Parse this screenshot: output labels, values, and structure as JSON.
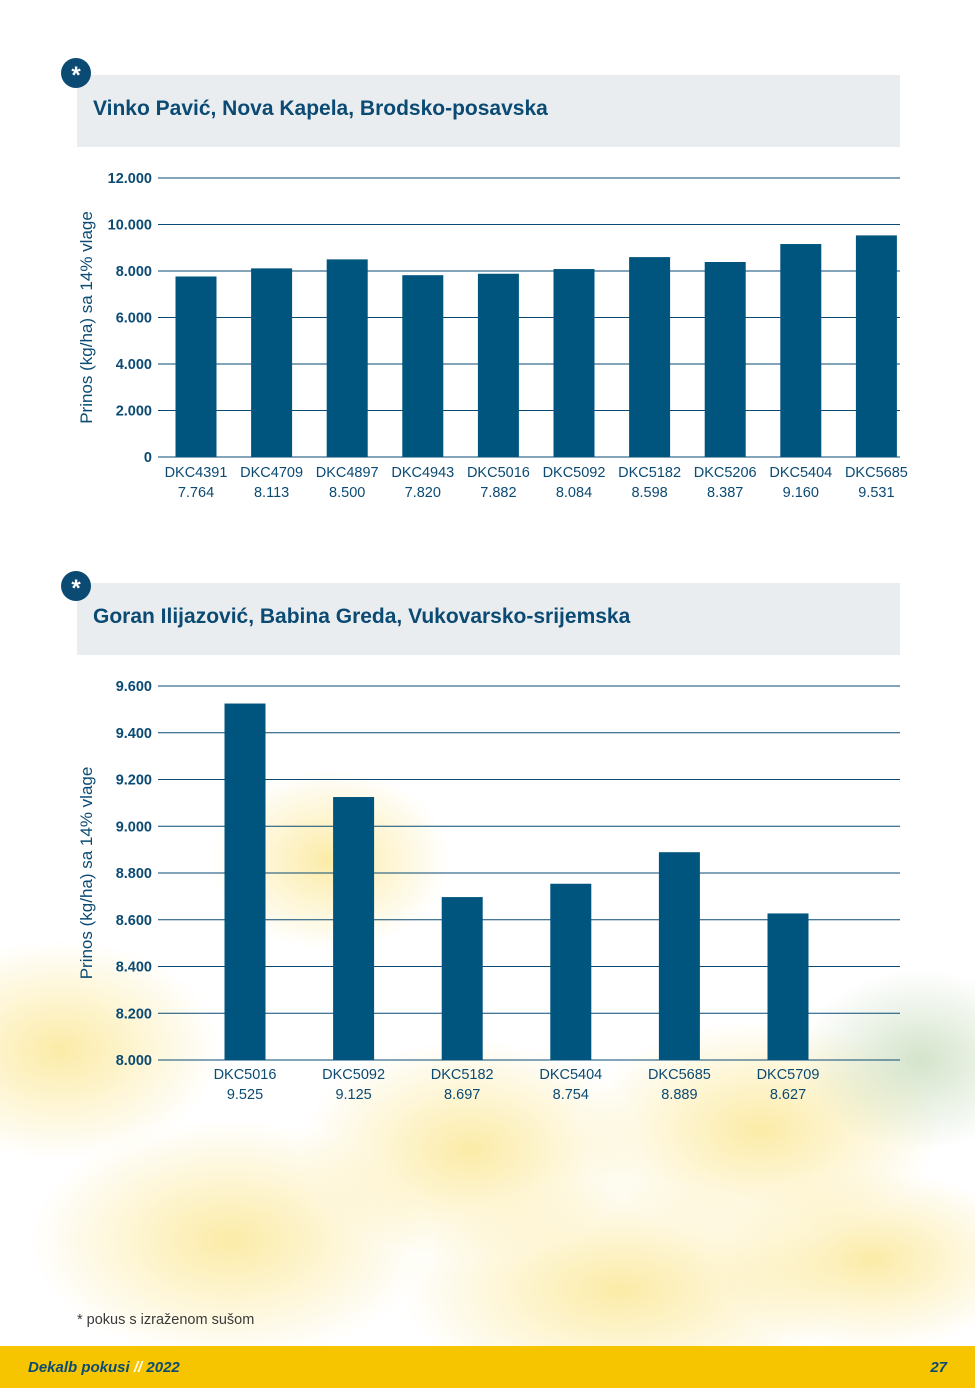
{
  "colors": {
    "bar": "#00557f",
    "grid": "#0a4a73",
    "title": "#0a4a73",
    "title_bg": "#eaedf0",
    "footer_bg": "#f6c500"
  },
  "badge_symbol": "*",
  "chart_data": [
    {
      "type": "bar",
      "title": "Vinko Pavić, Nova Kapela, Brodsko-posavska",
      "ylabel": "Prinos (kg/ha) sa 14% vlage",
      "xlabel": "",
      "ylim": [
        0,
        12000
      ],
      "yticks": [
        0,
        2000,
        4000,
        6000,
        8000,
        10000,
        12000
      ],
      "ytick_labels": [
        "0",
        "2.000",
        "4.000",
        "6.000",
        "8.000",
        "10.000",
        "12.000"
      ],
      "categories": [
        "DKC4391",
        "DKC4709",
        "DKC4897",
        "DKC4943",
        "DKC5016",
        "DKC5092",
        "DKC5182",
        "DKC5206",
        "DKC5404",
        "DKC5685"
      ],
      "values": [
        7764,
        8113,
        8500,
        7820,
        7882,
        8084,
        8598,
        8387,
        9160,
        9531
      ],
      "value_labels": [
        "7.764",
        "8.113",
        "8.500",
        "7.820",
        "7.882",
        "8.084",
        "8.598",
        "8.387",
        "9.160",
        "9.531"
      ],
      "grid": true
    },
    {
      "type": "bar",
      "title": "Goran Ilijazović, Babina Greda, Vukovarsko-srijemska",
      "ylabel": "Prinos (kg/ha) sa 14% vlage",
      "xlabel": "",
      "ylim": [
        8000,
        9600
      ],
      "yticks": [
        8000,
        8200,
        8400,
        8600,
        8800,
        9000,
        9200,
        9400,
        9600
      ],
      "ytick_labels": [
        "8.000",
        "8.200",
        "8.400",
        "8.600",
        "8.800",
        "9.000",
        "9.200",
        "9.400",
        "9.600"
      ],
      "categories": [
        "DKC5016",
        "DKC5092",
        "DKC5182",
        "DKC5404",
        "DKC5685",
        "DKC5709"
      ],
      "values": [
        9525,
        9125,
        8697,
        8754,
        8889,
        8627
      ],
      "value_labels": [
        "9.525",
        "9.125",
        "8.697",
        "8.754",
        "8.889",
        "8.627"
      ],
      "grid": true
    }
  ],
  "footnote": "* pokus s izraženom sušom",
  "footer": {
    "brand": "Dekalb pokusi",
    "separator": "//",
    "year": "2022",
    "page_number": "27"
  }
}
